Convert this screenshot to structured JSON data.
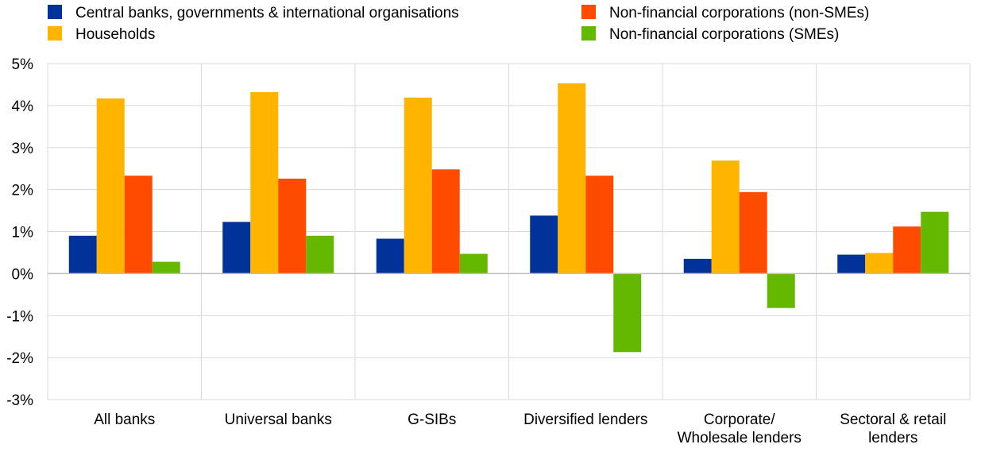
{
  "chart_data": {
    "type": "bar",
    "categories": [
      [
        "All banks"
      ],
      [
        "Universal banks"
      ],
      [
        "G-SIBs"
      ],
      [
        "Diversified lenders"
      ],
      [
        "Corporate/",
        "Wholesale lenders"
      ],
      [
        "Sectoral & retail",
        "lenders"
      ]
    ],
    "series": [
      {
        "name": "Central banks, governments & international organisations",
        "color": "#003299",
        "values": [
          0.9,
          1.23,
          0.83,
          1.38,
          0.35,
          0.45
        ]
      },
      {
        "name": "Households",
        "color": "#FFB400",
        "values": [
          4.17,
          4.32,
          4.19,
          4.53,
          2.69,
          0.49
        ]
      },
      {
        "name": "Non-financial corporations (non-SMEs)",
        "color": "#FF4B00",
        "values": [
          2.33,
          2.26,
          2.48,
          2.33,
          1.94,
          1.12
        ]
      },
      {
        "name": "Non-financial corporations (SMEs)",
        "color": "#65B800",
        "values": [
          0.28,
          0.9,
          0.47,
          -1.87,
          -0.82,
          1.47
        ]
      }
    ],
    "ylim": [
      -3,
      5
    ],
    "yticks": [
      -3,
      -2,
      -1,
      0,
      1,
      2,
      3,
      4,
      5
    ],
    "ytick_labels": [
      "-3%",
      "-2%",
      "-1%",
      "0%",
      "1%",
      "2%",
      "3%",
      "4%",
      "5%"
    ],
    "grid": true,
    "legend_position": "top",
    "title": "",
    "xlabel": "",
    "ylabel": ""
  }
}
